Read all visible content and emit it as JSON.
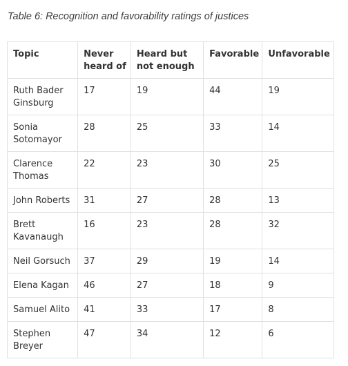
{
  "caption": "Table 6: Recognition and favorability ratings of justices",
  "table": {
    "headers": [
      "Topic",
      "Never heard of",
      "Heard but not enough",
      "Favorable",
      "Unfavorable"
    ],
    "rows": [
      [
        "Ruth Bader Ginsburg",
        "17",
        "19",
        "44",
        "19"
      ],
      [
        "Sonia Sotomayor",
        "28",
        "25",
        "33",
        "14"
      ],
      [
        "Clarence Thomas",
        "22",
        "23",
        "30",
        "25"
      ],
      [
        "John Roberts",
        "31",
        "27",
        "28",
        "13"
      ],
      [
        "Brett Kavanaugh",
        "16",
        "23",
        "28",
        "32"
      ],
      [
        "Neil Gorsuch",
        "37",
        "29",
        "19",
        "14"
      ],
      [
        "Elena Kagan",
        "46",
        "27",
        "18",
        "9"
      ],
      [
        "Samuel Alito",
        "41",
        "33",
        "17",
        "8"
      ],
      [
        "Stephen Breyer",
        "47",
        "34",
        "12",
        "6"
      ]
    ]
  }
}
